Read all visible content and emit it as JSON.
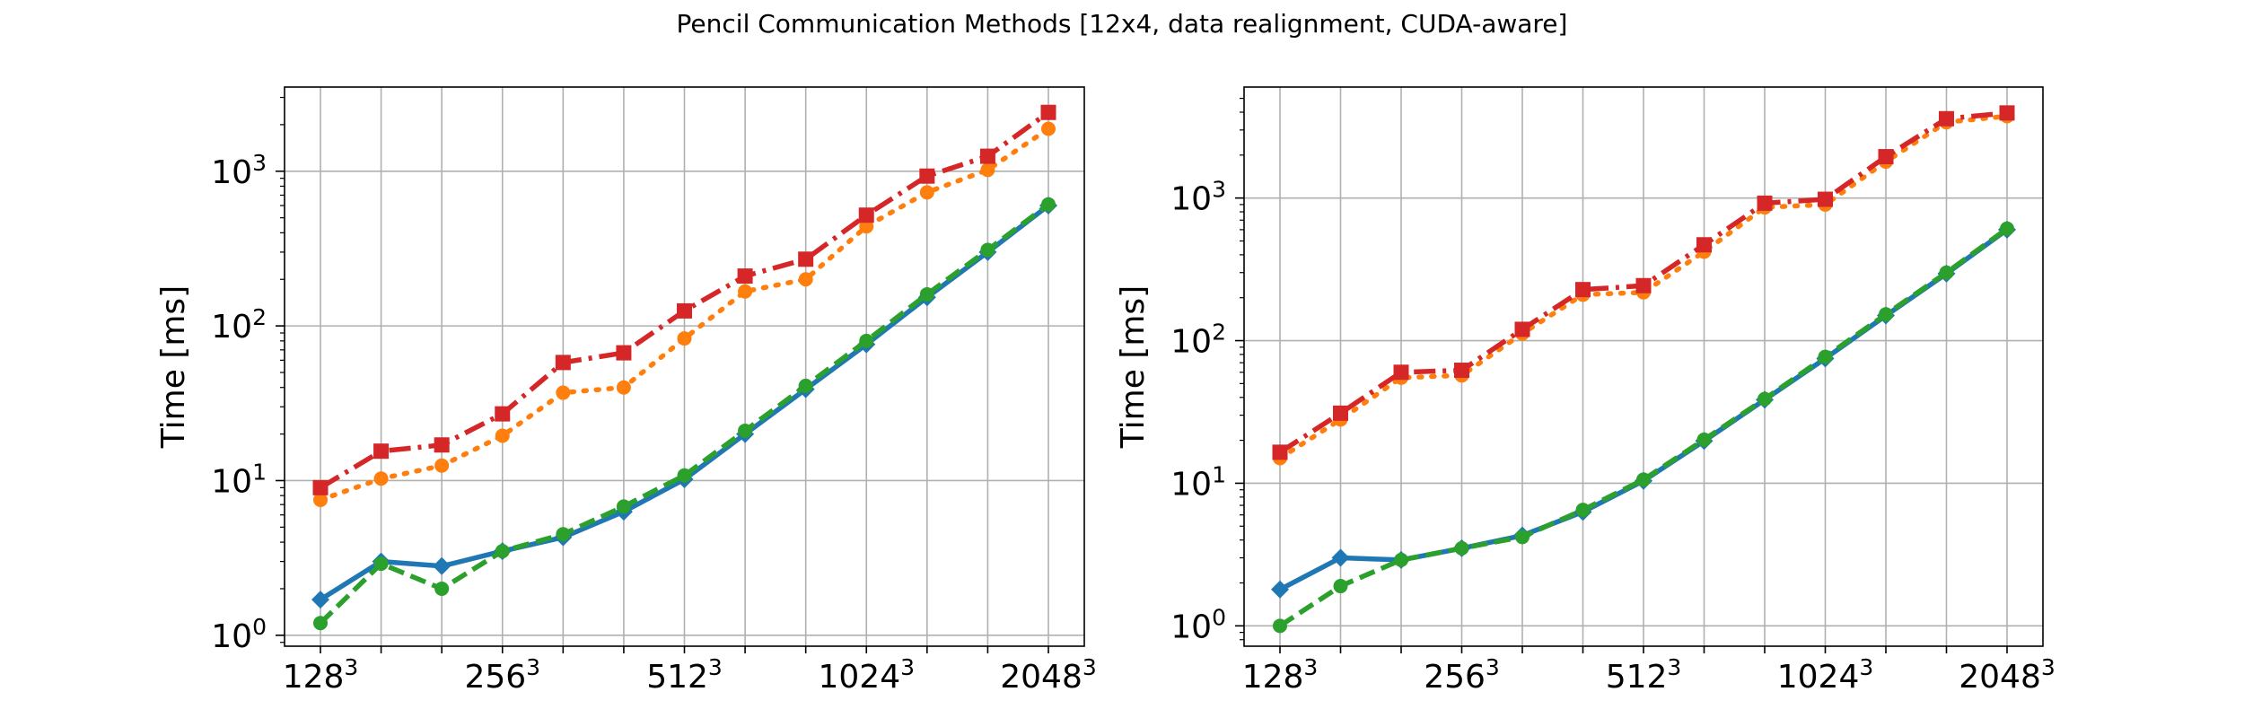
{
  "figure_title": "Pencil Communication Methods [12x4, data realignment, CUDA-aware]",
  "colors": {
    "blue": "#1f77b4",
    "orange": "#ff7f0e",
    "green": "#2ca02c",
    "red": "#d62728",
    "grid": "#b0b0b0"
  },
  "chart_data": [
    {
      "type": "line",
      "title": "",
      "xlabel": "",
      "ylabel": "Time [ms]",
      "yscale": "log",
      "ylim": [
        0.85,
        3500
      ],
      "x_ticks": [
        {
          "base": "128",
          "exp": "3"
        },
        {
          "base": "256",
          "exp": "3"
        },
        {
          "base": "512",
          "exp": "3"
        },
        {
          "base": "1024",
          "exp": "3"
        },
        {
          "base": "2048",
          "exp": "3"
        }
      ],
      "y_ticks": [
        {
          "value": 1,
          "base": "10",
          "exp": "0"
        },
        {
          "value": 10,
          "base": "10",
          "exp": "1"
        },
        {
          "value": 100,
          "base": "10",
          "exp": "2"
        },
        {
          "value": 1000,
          "base": "10",
          "exp": "3"
        }
      ],
      "grid": true,
      "legend": "none",
      "x_index": [
        0,
        1,
        2,
        3,
        4,
        5,
        6,
        7,
        8,
        9,
        10,
        11,
        12
      ],
      "series": [
        {
          "color": "blue",
          "linestyle": "solid",
          "marker": "diamond",
          "values": [
            1.7,
            3.0,
            2.8,
            3.5,
            4.3,
            6.3,
            10.2,
            20.0,
            39.0,
            76.0,
            153.0,
            300.0,
            600.0
          ]
        },
        {
          "color": "orange",
          "linestyle": "dotted",
          "marker": "circle",
          "values": [
            7.5,
            10.3,
            12.5,
            19.5,
            37.0,
            40.0,
            83.0,
            167.0,
            200.0,
            440.0,
            730.0,
            1020.0,
            1880.0
          ]
        },
        {
          "color": "green",
          "linestyle": "dashed",
          "marker": "circle",
          "values": [
            1.2,
            2.9,
            2.0,
            3.5,
            4.5,
            6.8,
            10.8,
            21.0,
            41.0,
            80.0,
            160.0,
            310.0,
            610.0
          ]
        },
        {
          "color": "red",
          "linestyle": "dashdot",
          "marker": "square",
          "values": [
            9.0,
            15.5,
            17.0,
            27.0,
            58.0,
            67.0,
            125.0,
            210.0,
            270.0,
            520.0,
            930.0,
            1250.0,
            2400.0
          ]
        }
      ]
    },
    {
      "type": "line",
      "title": "",
      "xlabel": "",
      "ylabel": "Time [ms]",
      "yscale": "log",
      "ylim": [
        0.72,
        6000
      ],
      "x_ticks": [
        {
          "base": "128",
          "exp": "3"
        },
        {
          "base": "256",
          "exp": "3"
        },
        {
          "base": "512",
          "exp": "3"
        },
        {
          "base": "1024",
          "exp": "3"
        },
        {
          "base": "2048",
          "exp": "3"
        }
      ],
      "y_ticks": [
        {
          "value": 1,
          "base": "10",
          "exp": "0"
        },
        {
          "value": 10,
          "base": "10",
          "exp": "1"
        },
        {
          "value": 100,
          "base": "10",
          "exp": "2"
        },
        {
          "value": 1000,
          "base": "10",
          "exp": "3"
        }
      ],
      "grid": true,
      "legend": "none",
      "x_index": [
        0,
        1,
        2,
        3,
        4,
        5,
        6,
        7,
        8,
        9,
        10,
        11,
        12
      ],
      "series": [
        {
          "color": "blue",
          "linestyle": "solid",
          "marker": "diamond",
          "values": [
            1.8,
            3.0,
            2.9,
            3.5,
            4.3,
            6.3,
            10.4,
            19.8,
            38.5,
            75.0,
            150.0,
            295.0,
            600.0
          ]
        },
        {
          "color": "orange",
          "linestyle": "dotted",
          "marker": "circle",
          "values": [
            15.0,
            28.0,
            55.0,
            57.0,
            112.0,
            210.0,
            218.0,
            420.0,
            860.0,
            900.0,
            1800.0,
            3400.0,
            3750.0
          ]
        },
        {
          "color": "green",
          "linestyle": "dashed",
          "marker": "circle",
          "values": [
            1.0,
            1.9,
            2.9,
            3.5,
            4.2,
            6.5,
            10.6,
            20.2,
            39.0,
            77.0,
            153.0,
            300.0,
            610.0
          ]
        },
        {
          "color": "red",
          "linestyle": "dashdot",
          "marker": "square",
          "values": [
            16.5,
            31.0,
            60.0,
            62.0,
            120.0,
            228.0,
            243.0,
            470.0,
            920.0,
            980.0,
            1950.0,
            3600.0,
            3950.0
          ]
        }
      ]
    }
  ]
}
